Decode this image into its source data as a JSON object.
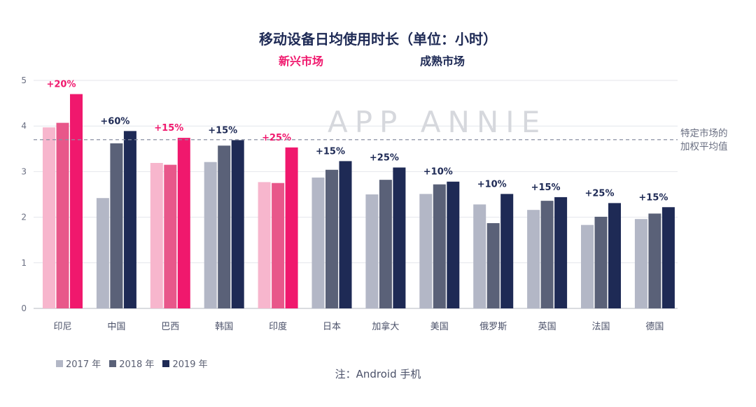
{
  "title": "移动设备日均使用时长（单位：小时）",
  "group_labels": {
    "emerging": "新兴市场",
    "mature": "成熟市场"
  },
  "reference_line": {
    "value": 3.7,
    "label_line1": "特定市场的",
    "label_line2": "加权平均值"
  },
  "watermark": "APP ANNIE",
  "note": "注：Android 手机",
  "legend": [
    {
      "label": "2017 年",
      "color": "#b3b7c6"
    },
    {
      "label": "2018 年",
      "color": "#5a6178"
    },
    {
      "label": "2019 年",
      "color": "#1e2a55"
    }
  ],
  "colors": {
    "emerging": [
      "#f7b6cd",
      "#e8578a",
      "#f0186d"
    ],
    "mature": [
      "#b3b7c6",
      "#5a6178",
      "#1e2a55"
    ],
    "emerging_growth": "#f0186d",
    "mature_growth": "#1e2a55",
    "reference_line": "#8a90a2"
  },
  "chart_data": {
    "type": "bar",
    "categories": [
      "印尼",
      "中国",
      "巴西",
      "韩国",
      "印度",
      "日本",
      "加拿大",
      "美国",
      "俄罗斯",
      "英国",
      "法国",
      "德国"
    ],
    "series": [
      {
        "name": "2017 年",
        "values": [
          3.97,
          2.42,
          3.19,
          3.21,
          2.77,
          2.87,
          2.5,
          2.51,
          2.28,
          2.16,
          1.83,
          1.96
        ]
      },
      {
        "name": "2018 年",
        "values": [
          4.07,
          3.62,
          3.15,
          3.57,
          2.75,
          3.04,
          2.82,
          2.72,
          1.87,
          2.36,
          2.01,
          2.08
        ]
      },
      {
        "name": "2019 年",
        "values": [
          4.7,
          3.89,
          3.74,
          3.69,
          3.53,
          3.23,
          3.09,
          2.78,
          2.51,
          2.44,
          2.31,
          2.22
        ]
      }
    ],
    "market_type": [
      "emerging",
      "mature",
      "emerging",
      "mature",
      "emerging",
      "mature",
      "mature",
      "mature",
      "mature",
      "mature",
      "mature",
      "mature"
    ],
    "growth_labels": [
      "+20%",
      "+60%",
      "+15%",
      "+15%",
      "+25%",
      "+15%",
      "+25%",
      "+10%",
      "+10%",
      "+15%",
      "+25%",
      "+15%"
    ],
    "y_ticks": [
      0,
      1,
      2,
      3,
      4,
      5
    ],
    "ylim": [
      0,
      5
    ],
    "grid": true
  }
}
